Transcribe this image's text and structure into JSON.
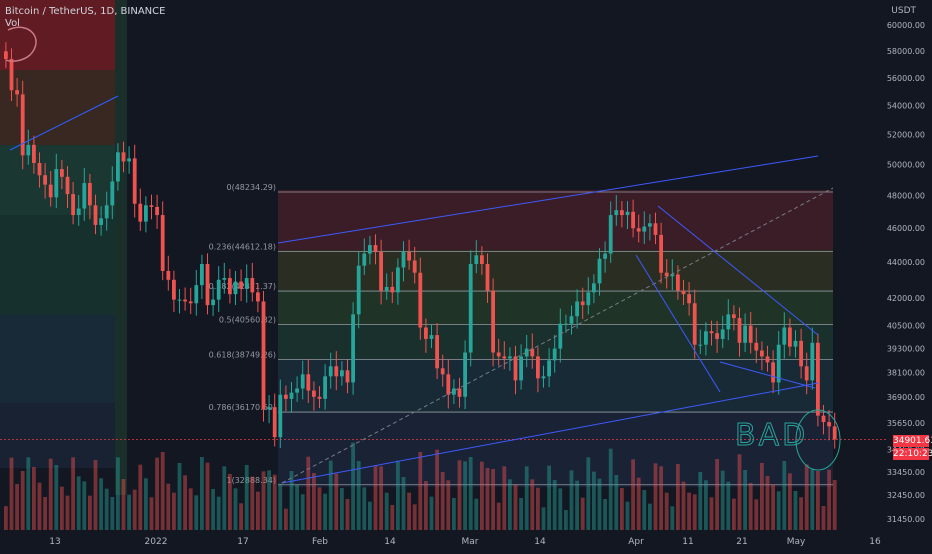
{
  "header": {
    "title": "Bitcoin / TetherUS, 1D, BINANCE",
    "indicator": "Vol",
    "currency": "USDT"
  },
  "price_badge": {
    "price": "34901.63",
    "countdown": "22:10:23"
  },
  "annotation": {
    "handwritten_text": "BAD"
  },
  "colors": {
    "up": "#26a69a",
    "down": "#ef5350",
    "trendline": "#2962ff",
    "background": "#131722"
  },
  "chart_data": {
    "type": "candlestick",
    "y_scale": "log",
    "ylim": [
      31000,
      62000
    ],
    "y_ticks": [
      "60000.00",
      "58000.00",
      "56000.00",
      "54000.00",
      "52000.00",
      "50000.00",
      "48000.00",
      "46000.00",
      "44000.00",
      "42000.00",
      "40500.00",
      "39300.00",
      "38100.00",
      "36900.00",
      "35650.00",
      "34450.00",
      "33450.00",
      "32450.00",
      "31450.00"
    ],
    "x_ticks": [
      "13",
      "2022",
      "17",
      "Feb",
      "14",
      "Mar",
      "14",
      "Apr",
      "11",
      "21",
      "May",
      "16"
    ],
    "last_price": 34901.63,
    "fib_levels": [
      {
        "label": "0(48234.29)",
        "value": 48234.29
      },
      {
        "label": "0.236(44612.18)",
        "value": 44612.18
      },
      {
        "label": "0.382(42371.37)",
        "value": 42371.37
      },
      {
        "label": "0.5(40560.32)",
        "value": 40560.32
      },
      {
        "label": "0.618(38749.26)",
        "value": 38749.26
      },
      {
        "label": "0.786(36170.60)",
        "value": 36170.6
      },
      {
        "label": "1(32888.34)",
        "value": 32888.34
      }
    ],
    "candles_close_est": [
      57400,
      55100,
      54800,
      50600,
      51300,
      50100,
      49300,
      48700,
      47900,
      49700,
      49200,
      48100,
      46800,
      47200,
      48800,
      47400,
      46200,
      46600,
      47400,
      48900,
      50800,
      50200,
      50400,
      47500,
      46400,
      47400,
      47300,
      46800,
      43500,
      43000,
      41900,
      41900,
      41800,
      41700,
      42700,
      43900,
      41600,
      41900,
      43000,
      43100,
      42200,
      42900,
      42500,
      43100,
      42300,
      41800,
      36300,
      36400,
      35000,
      37000,
      36800,
      37100,
      37300,
      38000,
      37200,
      36900,
      36800,
      37900,
      38400,
      37900,
      38200,
      37600,
      41100,
      43800,
      44500,
      45000,
      44600,
      42400,
      42600,
      42300,
      43700,
      44600,
      44100,
      43400,
      40400,
      39800,
      40000,
      38300,
      38000,
      37000,
      37300,
      36900,
      39100,
      43900,
      44400,
      43900,
      42400,
      39100,
      38900,
      38800,
      38900,
      37700,
      38900,
      39300,
      38900,
      37800,
      37900,
      38700,
      39300,
      40600,
      40600,
      41000,
      41800,
      41600,
      42300,
      42800,
      44200,
      44500,
      46800,
      47100,
      46800,
      47000,
      46000,
      45800,
      46100,
      46300,
      45600,
      43400,
      43200,
      43300,
      42400,
      42200,
      41700,
      39500,
      39500,
      40200,
      40100,
      39800,
      40300,
      41100,
      40900,
      39600,
      40500,
      39600,
      39200,
      38900,
      38600,
      37600,
      39500,
      40400,
      39400,
      39700,
      38400,
      37700,
      39600,
      36000,
      35700,
      35500,
      34900
    ]
  }
}
